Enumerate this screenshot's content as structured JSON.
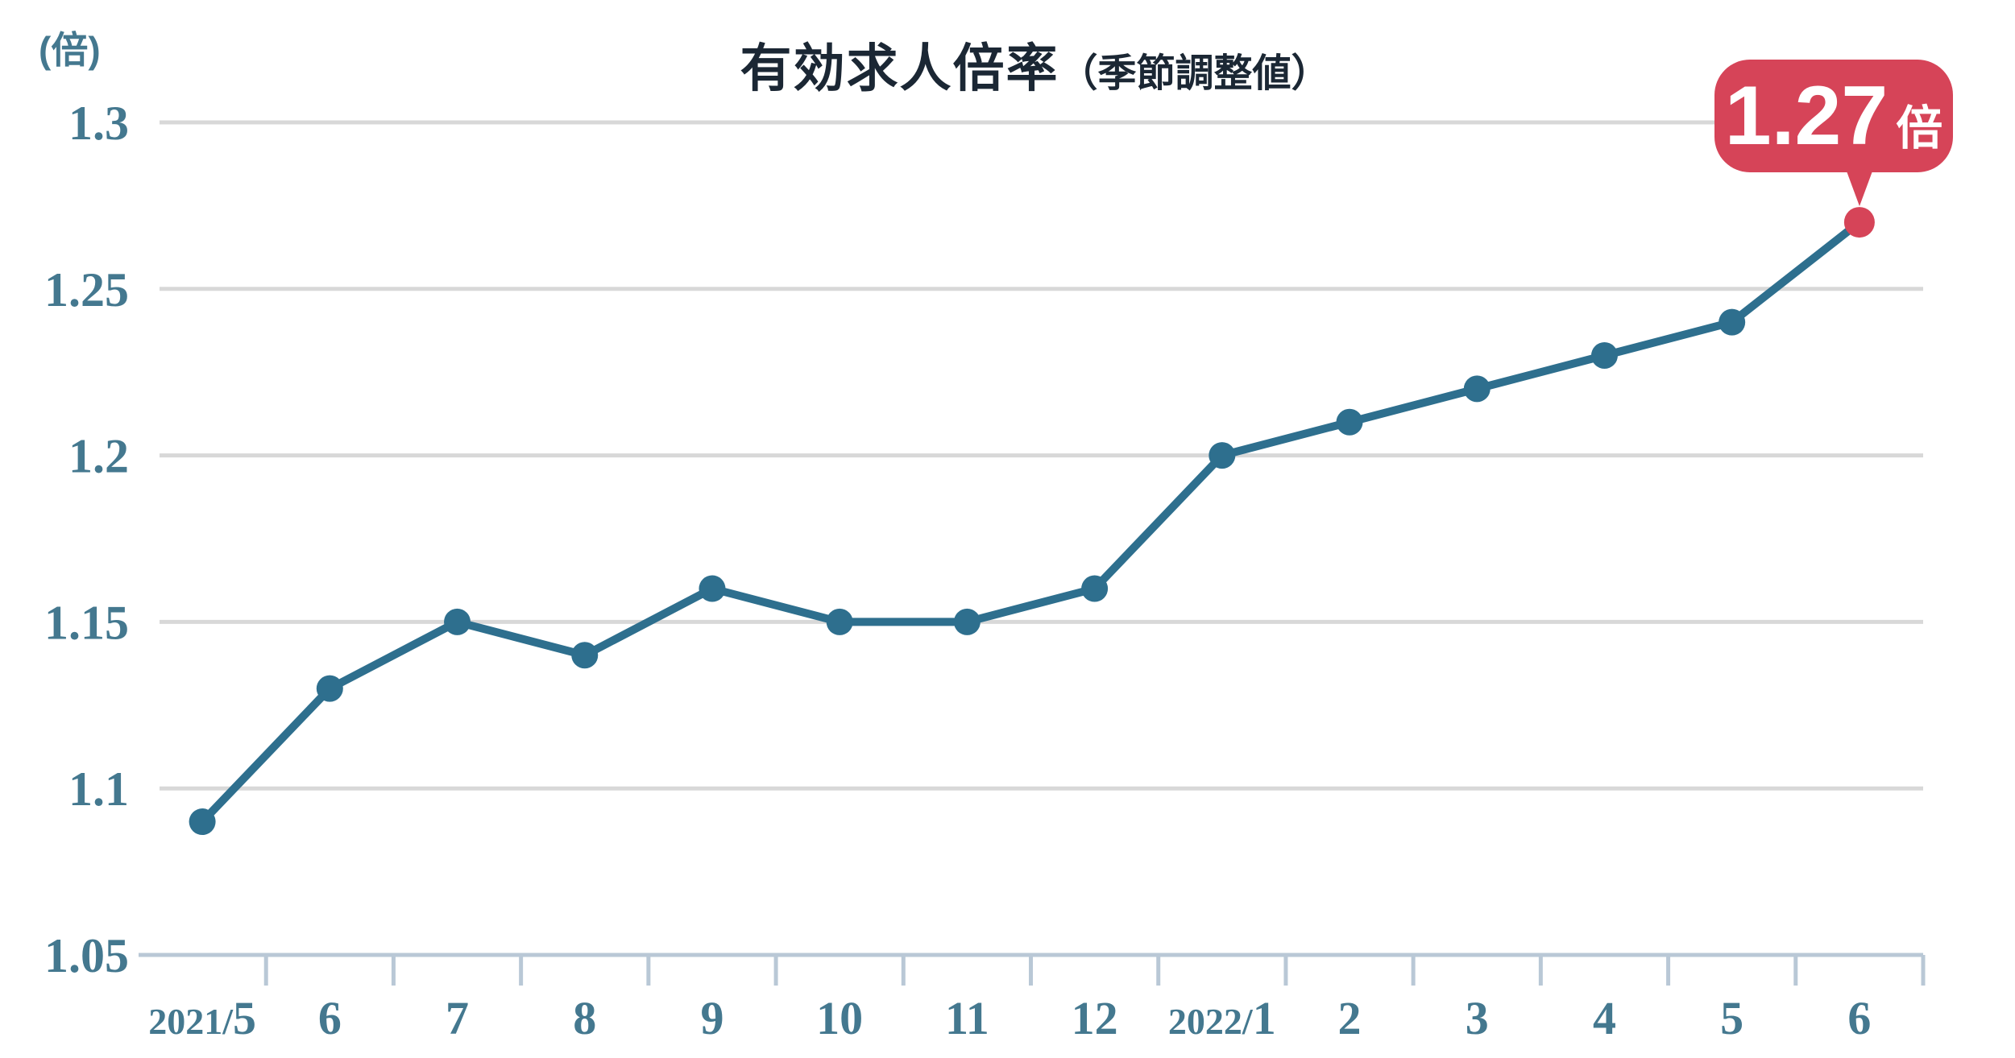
{
  "title": {
    "main": "有効求人倍率",
    "sub": "（季節調整値）"
  },
  "y_axis_unit": "(倍)",
  "annotation": {
    "value": "1.27",
    "unit": "倍"
  },
  "chart_data": {
    "type": "line",
    "title": "有効求人倍率（季節調整値）",
    "ylabel": "(倍)",
    "xlabel": "",
    "categories": [
      "2021/5",
      "6",
      "7",
      "8",
      "9",
      "10",
      "11",
      "12",
      "2022/1",
      "2",
      "3",
      "4",
      "5",
      "6"
    ],
    "values": [
      1.09,
      1.13,
      1.15,
      1.14,
      1.16,
      1.15,
      1.15,
      1.16,
      1.2,
      1.21,
      1.22,
      1.23,
      1.24,
      1.27
    ],
    "ylim": [
      1.05,
      1.3
    ],
    "yticks": [
      1.05,
      1.1,
      1.15,
      1.2,
      1.25,
      1.3
    ],
    "grid": true,
    "legend": "none",
    "highlight_last_point": true,
    "highlight_label": "1.27倍",
    "colors": {
      "line": "#2e6f8e",
      "point": "#2e6f8e",
      "highlight": "#d64458",
      "grid": "#d8d8d8",
      "axis": "#b9c8d6",
      "tick_label": "#44788f",
      "title": "#1b2734",
      "background": "#ffffff"
    }
  }
}
